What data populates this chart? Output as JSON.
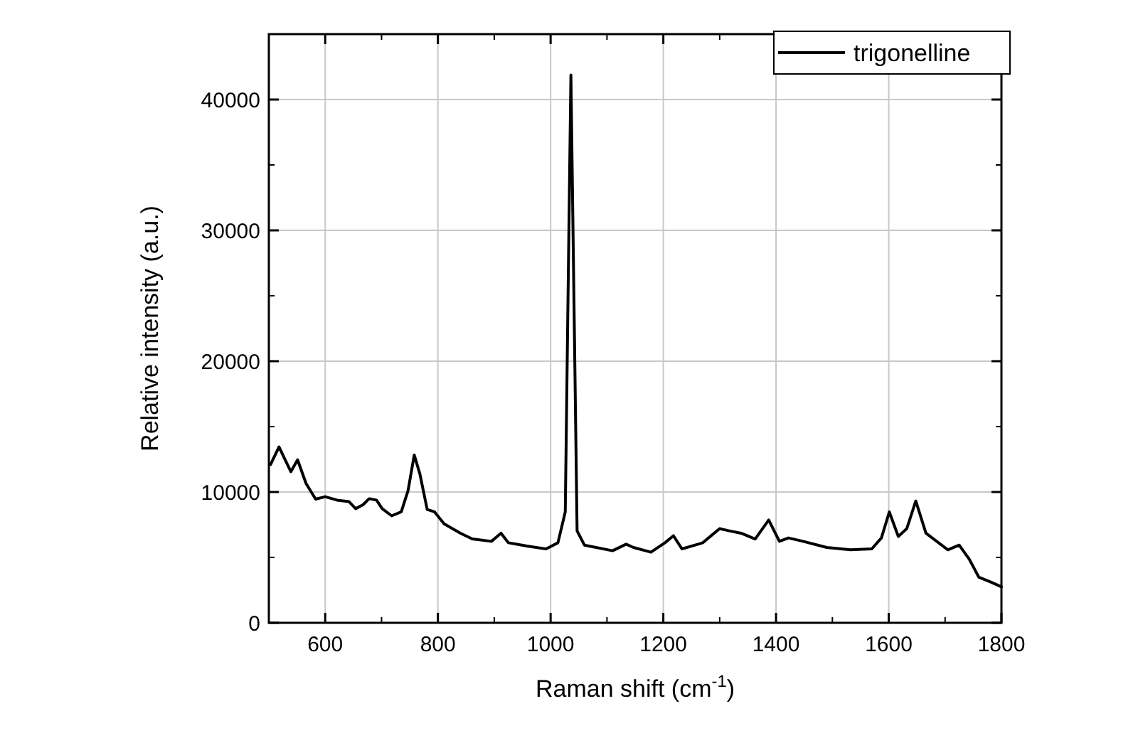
{
  "chart_data": {
    "type": "line",
    "xlabel": "Raman shift (cm$^{-1}$)",
    "ylabel": "Relative intensity (a.u.)",
    "xlim": [
      500,
      1800
    ],
    "xticks": [
      600,
      800,
      1000,
      1200,
      1400,
      1600,
      1800
    ],
    "ylim": [
      0,
      45000
    ],
    "yticks": [
      0,
      10000,
      20000,
      30000,
      40000
    ],
    "grid": true,
    "legend": "top right",
    "line_style": "solid",
    "marker": "none",
    "series": [
      {
        "name": "trigonelline",
        "color": "#000000",
        "x": [
          503,
          518,
          539,
          551,
          566,
          583,
          600,
          621,
          642,
          654,
          667,
          678,
          691,
          701,
          718,
          735,
          747,
          758,
          768,
          781,
          794,
          811,
          840,
          861,
          895,
          912,
          925,
          958,
          992,
          1013,
          1026,
          1036,
          1047,
          1060,
          1110,
          1134,
          1147,
          1178,
          1203,
          1218,
          1233,
          1262,
          1270,
          1300,
          1317,
          1338,
          1363,
          1387,
          1406,
          1422,
          1448,
          1490,
          1532,
          1570,
          1587,
          1601,
          1617,
          1632,
          1648,
          1666,
          1705,
          1725,
          1743,
          1760,
          1781,
          1800
        ],
        "values": [
          12100,
          13450,
          11550,
          12460,
          10650,
          9460,
          9640,
          9380,
          9270,
          8730,
          9020,
          9490,
          9380,
          8730,
          8180,
          8480,
          10100,
          12830,
          11380,
          8660,
          8480,
          7570,
          6850,
          6410,
          6230,
          6850,
          6120,
          5870,
          5650,
          6120,
          8480,
          41880,
          7030,
          5940,
          5510,
          6010,
          5760,
          5400,
          6120,
          6660,
          5650,
          6010,
          6120,
          7200,
          7030,
          6850,
          6410,
          7860,
          6230,
          6490,
          6230,
          5760,
          5580,
          5650,
          6490,
          8480,
          6600,
          7200,
          9310,
          6850,
          5580,
          5940,
          4860,
          3480,
          3120,
          2750
        ]
      }
    ]
  }
}
